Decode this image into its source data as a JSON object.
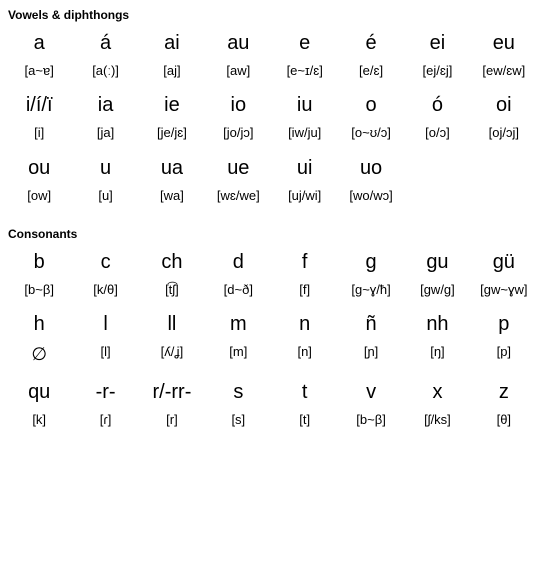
{
  "sections": {
    "vowels": {
      "title": "Vowels & diphthongs",
      "entries": [
        {
          "letter": "a",
          "ipa": "[a~ɐ]"
        },
        {
          "letter": "á",
          "ipa": "[a(ː)]"
        },
        {
          "letter": "ai",
          "ipa": "[aj]"
        },
        {
          "letter": "au",
          "ipa": "[aw]"
        },
        {
          "letter": "e",
          "ipa": "[e~ɪ/ɛ]"
        },
        {
          "letter": "é",
          "ipa": "[e/ɛ]"
        },
        {
          "letter": "ei",
          "ipa": "[ej/ɛj]"
        },
        {
          "letter": "eu",
          "ipa": "[ew/ɛw]"
        },
        {
          "letter": "i/í/ï",
          "ipa": "[i]"
        },
        {
          "letter": "ia",
          "ipa": "[ja]"
        },
        {
          "letter": "ie",
          "ipa": "[je/jɛ]"
        },
        {
          "letter": "io",
          "ipa": "[jo/jɔ]"
        },
        {
          "letter": "iu",
          "ipa": "[iw/ju]"
        },
        {
          "letter": "o",
          "ipa": "[o~ʊ/ɔ]"
        },
        {
          "letter": "ó",
          "ipa": "[o/ɔ]"
        },
        {
          "letter": "oi",
          "ipa": "[oj/ɔj]"
        },
        {
          "letter": "ou",
          "ipa": "[ow]"
        },
        {
          "letter": "u",
          "ipa": "[u]"
        },
        {
          "letter": "ua",
          "ipa": "[wa]"
        },
        {
          "letter": "ue",
          "ipa": "[wɛ/we]"
        },
        {
          "letter": "ui",
          "ipa": "[uj/wi]"
        },
        {
          "letter": "uo",
          "ipa": "[wo/wɔ]"
        }
      ]
    },
    "consonants": {
      "title": "Consonants",
      "entries": [
        {
          "letter": "b",
          "ipa": "[b~β]"
        },
        {
          "letter": "c",
          "ipa": "[k/θ]"
        },
        {
          "letter": "ch",
          "ipa": "[t͡ʃ]"
        },
        {
          "letter": "d",
          "ipa": "[d~ð]"
        },
        {
          "letter": "f",
          "ipa": "[f]"
        },
        {
          "letter": "g",
          "ipa": "[g~ɣ/ħ]"
        },
        {
          "letter": "gu",
          "ipa": "[gw/g]"
        },
        {
          "letter": "gü",
          "ipa": "[gw~ɣw]"
        },
        {
          "letter": "h",
          "ipa": "∅"
        },
        {
          "letter": "l",
          "ipa": "[l]"
        },
        {
          "letter": "ll",
          "ipa": "[ʎ/ʝ]"
        },
        {
          "letter": "m",
          "ipa": "[m]"
        },
        {
          "letter": "n",
          "ipa": "[n]"
        },
        {
          "letter": "ñ",
          "ipa": "[ɲ]"
        },
        {
          "letter": "nh",
          "ipa": "[ŋ]"
        },
        {
          "letter": "p",
          "ipa": "[p]"
        },
        {
          "letter": "qu",
          "ipa": "[k]"
        },
        {
          "letter": "-r-",
          "ipa": "[ɾ]"
        },
        {
          "letter": "r/-rr-",
          "ipa": "[r]"
        },
        {
          "letter": "s",
          "ipa": "[s]"
        },
        {
          "letter": "t",
          "ipa": "[t]"
        },
        {
          "letter": "v",
          "ipa": "[b~β]"
        },
        {
          "letter": "x",
          "ipa": "[ʃ/ks]"
        },
        {
          "letter": "z",
          "ipa": "[θ]"
        }
      ]
    }
  },
  "style": {
    "columns": 8,
    "background_color": "#ffffff",
    "text_color": "#000000",
    "title_fontsize": 12,
    "letter_fontsize": 20,
    "ipa_fontsize": 13
  }
}
